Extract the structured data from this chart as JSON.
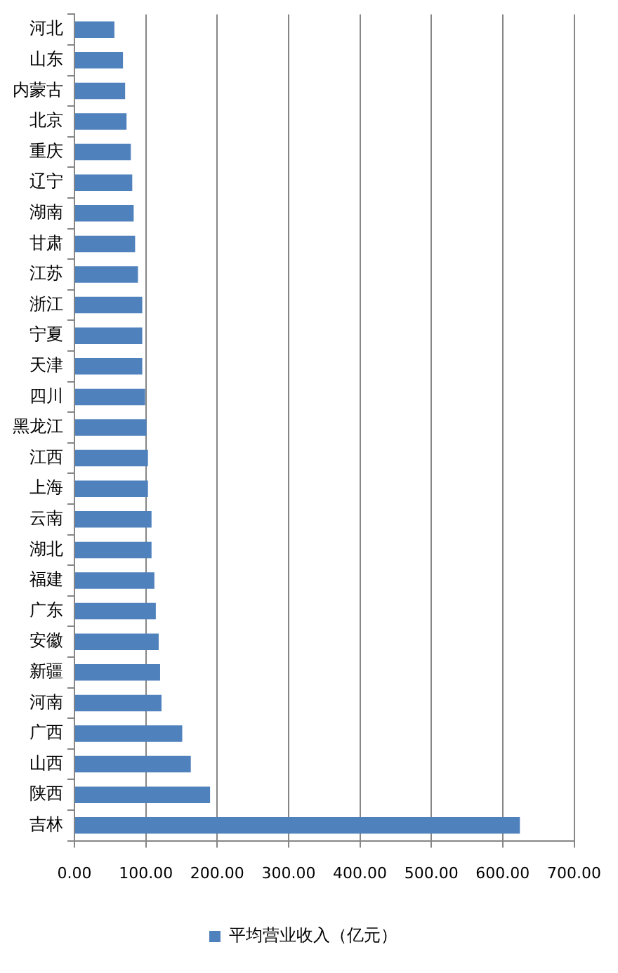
{
  "chart_data": {
    "type": "bar",
    "orientation": "horizontal",
    "categories": [
      "河北",
      "山东",
      "内蒙古",
      "北京",
      "重庆",
      "辽宁",
      "湖南",
      "甘肃",
      "江苏",
      "浙江",
      "宁夏",
      "天津",
      "四川",
      "黑龙江",
      "江西",
      "上海",
      "云南",
      "湖北",
      "福建",
      "广东",
      "安徽",
      "新疆",
      "河南",
      "广西",
      "山西",
      "陕西",
      "吉林"
    ],
    "series": [
      {
        "name": "平均营业收入（亿元）",
        "color": "#4f81bd",
        "values": [
          56,
          68,
          71,
          73,
          79,
          81,
          83,
          85,
          89,
          95,
          95,
          95,
          99,
          101,
          103,
          103,
          108,
          108,
          112,
          114,
          118,
          120,
          122,
          151,
          163,
          190,
          624
        ]
      }
    ],
    "xlim": [
      0,
      700
    ],
    "xticks": [
      {
        "value": 0,
        "label": "0.00"
      },
      {
        "value": 100,
        "label": "100.00"
      },
      {
        "value": 200,
        "label": "200.00"
      },
      {
        "value": 300,
        "label": "300.00"
      },
      {
        "value": 400,
        "label": "400.00"
      },
      {
        "value": 500,
        "label": "500.00"
      },
      {
        "value": 600,
        "label": "600.00"
      },
      {
        "value": 700,
        "label": "700.00"
      }
    ],
    "grid": "x",
    "legend": "bottom"
  }
}
